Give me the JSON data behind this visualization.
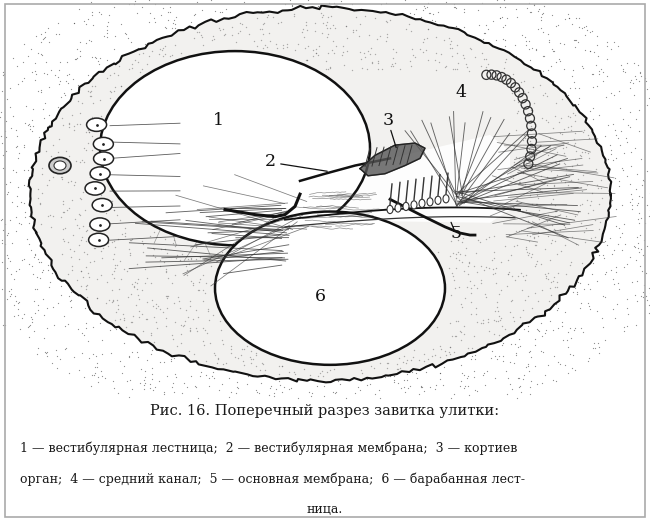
{
  "title": "Рис. 16. Поперечный разрез завитка улитки:",
  "caption_line1": "1 — вестибулярная лестница;  2 — вестибулярная мембрана;  3 — кортиев",
  "caption_line2": "орган;  4 — средний канал;  5 — основная мембрана;  6 — барабанная лест-",
  "caption_line3": "ница.",
  "bg_color": "#ffffff",
  "fig_width": 6.5,
  "fig_height": 5.21,
  "dpi": 100,
  "text_color": "#1a1a1a",
  "title_fontsize": 10.5,
  "caption_fontsize": 9.0
}
